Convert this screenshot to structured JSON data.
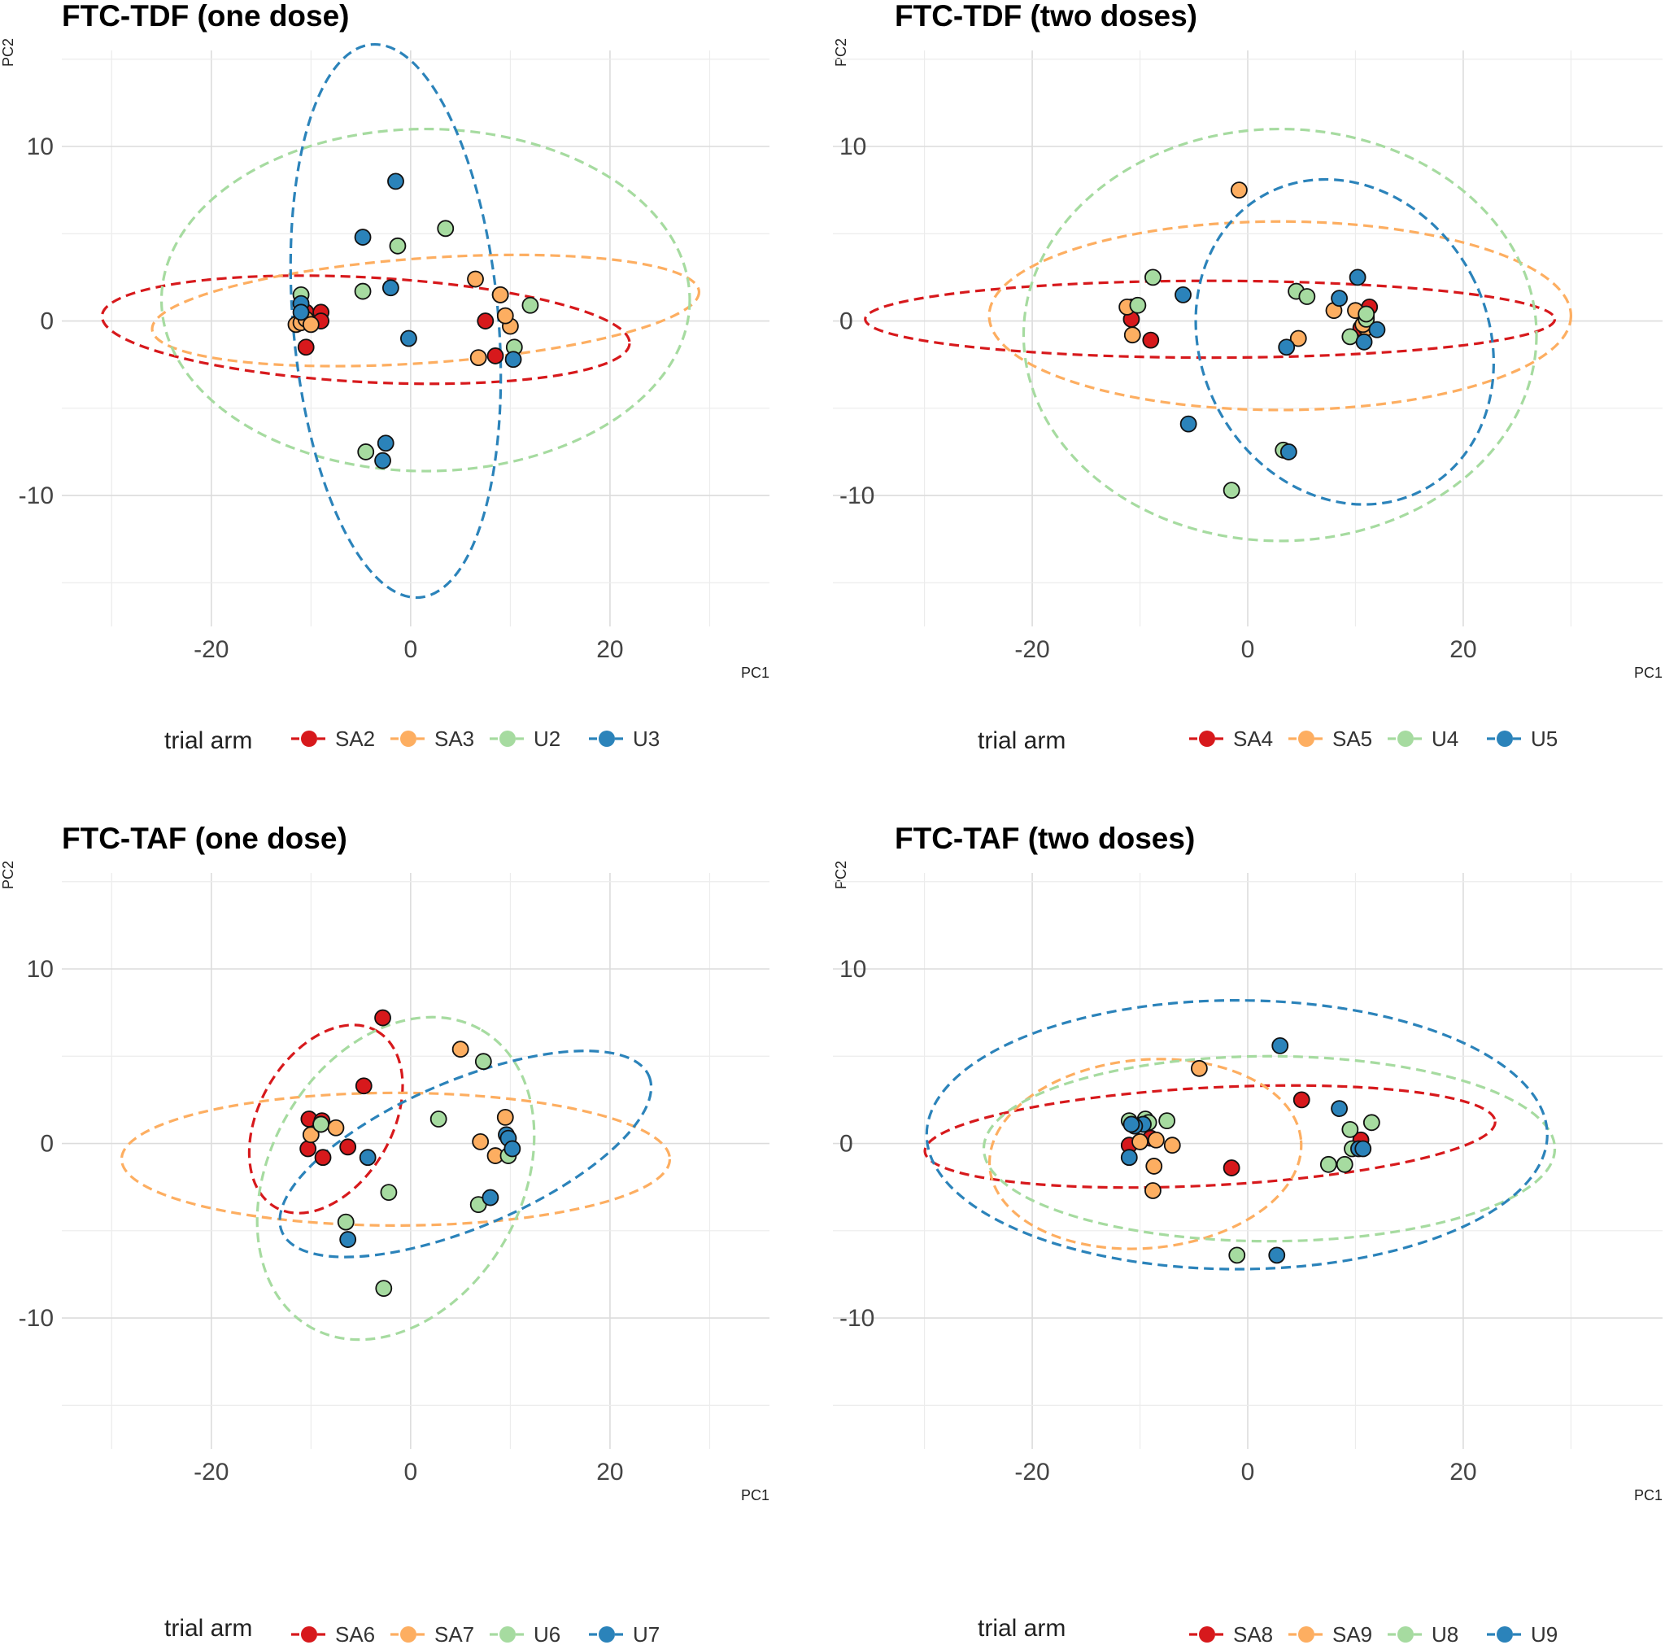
{
  "legend_title": "trial arm",
  "colors": [
    "#d7191c",
    "#fdae61",
    "#a6dba0",
    "#2b83ba"
  ],
  "chart_data": [
    {
      "type": "scatter",
      "title": "FTC-TDF (one dose)",
      "xlabel": "PC1",
      "ylabel": "PC2",
      "xlim": [
        -35,
        36
      ],
      "ylim": [
        -17.5,
        15.5
      ],
      "xticks": [
        -20,
        0,
        20
      ],
      "yticks": [
        -10,
        0,
        10
      ],
      "xtick_labels": [
        "-20",
        "0",
        "20"
      ],
      "ytick_labels": [
        "-10",
        "0",
        "10"
      ],
      "series": [
        {
          "name": "SA2",
          "color": "#d7191c",
          "points": [
            [
              -10.5,
              0.5
            ],
            [
              -9,
              0.5
            ],
            [
              -9,
              0.0
            ],
            [
              -10.5,
              -1.5
            ],
            [
              7.5,
              0.0
            ],
            [
              8.5,
              -2.0
            ],
            [
              9,
              1.5
            ]
          ],
          "ellipse": {
            "cx": -4.5,
            "cy": -0.5,
            "rx": 26.5,
            "ry": 3.0,
            "angle": -3
          }
        },
        {
          "name": "SA3",
          "color": "#fdae61",
          "points": [
            [
              -11.5,
              -0.2
            ],
            [
              -11,
              -0.1
            ],
            [
              -10.5,
              0.1
            ],
            [
              -10,
              -0.2
            ],
            [
              6.5,
              2.4
            ],
            [
              9,
              1.5
            ],
            [
              10,
              -0.3
            ],
            [
              9.5,
              0.3
            ],
            [
              6.8,
              -2.1
            ]
          ],
          "ellipse": {
            "cx": 1.5,
            "cy": 0.6,
            "rx": 27.5,
            "ry": 3.0,
            "angle": 4
          }
        },
        {
          "name": "U2",
          "color": "#a6dba0",
          "points": [
            [
              -11,
              1.5
            ],
            [
              -4.8,
              1.7
            ],
            [
              -1.3,
              4.3
            ],
            [
              3.5,
              5.3
            ],
            [
              12,
              0.9
            ],
            [
              10.4,
              -1.5
            ],
            [
              -4.5,
              -7.5
            ]
          ],
          "ellipse": {
            "cx": 1.5,
            "cy": 1.2,
            "rx": 26.5,
            "ry": 9.8,
            "angle": 0
          }
        },
        {
          "name": "U3",
          "color": "#2b83ba",
          "points": [
            [
              -1.5,
              8.0
            ],
            [
              -4.8,
              4.8
            ],
            [
              -2,
              1.9
            ],
            [
              -11,
              1.0
            ],
            [
              -11,
              0.5
            ],
            [
              -0.2,
              -1.0
            ],
            [
              10.3,
              -2.2
            ],
            [
              -2.5,
              -7.0
            ],
            [
              -2.8,
              -8.0
            ]
          ],
          "ellipse": {
            "cx": -1.5,
            "cy": 0.0,
            "rx": 10.3,
            "ry": 15.9,
            "angle": 5
          }
        }
      ]
    },
    {
      "type": "scatter",
      "title": "FTC-TDF (two doses)",
      "xlabel": "PC1",
      "ylabel": "PC2",
      "xlim": [
        -38.5,
        38.5
      ],
      "ylim": [
        -17.5,
        15.5
      ],
      "xticks": [
        -20,
        0,
        20
      ],
      "yticks": [
        -10,
        0,
        10
      ],
      "xtick_labels": [
        "-20",
        "0",
        "20"
      ],
      "ytick_labels": [
        "-10",
        "0",
        "10"
      ],
      "series": [
        {
          "name": "SA4",
          "color": "#d7191c",
          "points": [
            [
              -10.8,
              0.8
            ],
            [
              -10.8,
              0.1
            ],
            [
              -9,
              -1.1
            ],
            [
              11.3,
              0.8
            ],
            [
              10.5,
              -0.4
            ]
          ],
          "ellipse": {
            "cx": -3.5,
            "cy": 0.1,
            "rx": 32,
            "ry": 2.2,
            "angle": 0
          }
        },
        {
          "name": "SA5",
          "color": "#fdae61",
          "points": [
            [
              -11.2,
              0.8
            ],
            [
              -10.7,
              -0.8
            ],
            [
              -0.8,
              7.5
            ],
            [
              4.7,
              -1.0
            ],
            [
              8,
              0.6
            ],
            [
              10,
              0.6
            ],
            [
              11,
              -0.4
            ],
            [
              10.7,
              -0.2
            ],
            [
              11,
              0.2
            ]
          ],
          "ellipse": {
            "cx": 3,
            "cy": 0.3,
            "rx": 27,
            "ry": 5.4,
            "angle": 0
          }
        },
        {
          "name": "U4",
          "color": "#a6dba0",
          "points": [
            [
              -10.2,
              0.9
            ],
            [
              -8.8,
              2.5
            ],
            [
              4.5,
              1.7
            ],
            [
              5.5,
              1.4
            ],
            [
              9.5,
              -0.9
            ],
            [
              11,
              0.1
            ],
            [
              11,
              0.4
            ],
            [
              3.3,
              -7.4
            ],
            [
              -1.5,
              -9.7
            ]
          ],
          "ellipse": {
            "cx": 3,
            "cy": -0.8,
            "rx": 23.8,
            "ry": 11.8,
            "angle": 0
          }
        },
        {
          "name": "U5",
          "color": "#2b83ba",
          "points": [
            [
              -6,
              1.5
            ],
            [
              10.2,
              2.5
            ],
            [
              8.5,
              1.3
            ],
            [
              12,
              -0.5
            ],
            [
              10.8,
              -1.2
            ],
            [
              3.6,
              -1.5
            ],
            [
              -5.5,
              -5.9
            ],
            [
              3.8,
              -7.5
            ]
          ],
          "ellipse": {
            "cx": 9,
            "cy": -1.2,
            "rx": 13.3,
            "ry": 9.6,
            "angle": 28
          }
        }
      ]
    },
    {
      "type": "scatter",
      "title": "FTC-TAF (one dose)",
      "xlabel": "PC1",
      "ylabel": "PC2",
      "xlim": [
        -35,
        36
      ],
      "ylim": [
        -17.5,
        15.5
      ],
      "xticks": [
        -20,
        0,
        20
      ],
      "yticks": [
        -10,
        0,
        10
      ],
      "xtick_labels": [
        "-20",
        "0",
        "20"
      ],
      "ytick_labels": [
        "-10",
        "0",
        "10"
      ],
      "series": [
        {
          "name": "SA6",
          "color": "#d7191c",
          "points": [
            [
              -2.8,
              7.2
            ],
            [
              -4.7,
              3.3
            ],
            [
              -10.2,
              1.4
            ],
            [
              -8.9,
              1.3
            ],
            [
              -10.3,
              -0.3
            ],
            [
              -8.8,
              -0.8
            ],
            [
              -6.3,
              -0.2
            ]
          ],
          "ellipse": {
            "cx": -8.5,
            "cy": 1.4,
            "rx": 10.2,
            "ry": 3.8,
            "angle": 60
          }
        },
        {
          "name": "SA7",
          "color": "#fdae61",
          "points": [
            [
              5,
              5.4
            ],
            [
              9.5,
              1.5
            ],
            [
              -10,
              0.5
            ],
            [
              -9,
              1.1
            ],
            [
              -7.5,
              0.9
            ],
            [
              7,
              0.1
            ],
            [
              8.5,
              -0.7
            ]
          ],
          "ellipse": {
            "cx": -1.5,
            "cy": -0.9,
            "rx": 27.5,
            "ry": 3.8,
            "angle": 0
          }
        },
        {
          "name": "U6",
          "color": "#a6dba0",
          "points": [
            [
              7.3,
              4.7
            ],
            [
              2.8,
              1.4
            ],
            [
              -9,
              1.1
            ],
            [
              -2.2,
              -2.8
            ],
            [
              6.8,
              -3.5
            ],
            [
              9.8,
              -0.7
            ],
            [
              -6.5,
              -4.5
            ],
            [
              -2.7,
              -8.3
            ]
          ],
          "ellipse": {
            "cx": -1.5,
            "cy": -2,
            "rx": 17.2,
            "ry": 7.2,
            "angle": 60
          }
        },
        {
          "name": "U7",
          "color": "#2b83ba",
          "points": [
            [
              9.6,
              0.5
            ],
            [
              9.8,
              0.3
            ],
            [
              10.2,
              -0.3
            ],
            [
              -4.3,
              -0.8
            ],
            [
              8,
              -3.1
            ],
            [
              -6.3,
              -5.5
            ]
          ],
          "ellipse": {
            "cx": 5.5,
            "cy": -0.6,
            "rx": 20,
            "ry": 4.2,
            "angle": 23
          }
        }
      ]
    },
    {
      "type": "scatter",
      "title": "FTC-TAF (two doses)",
      "xlabel": "PC1",
      "ylabel": "PC2",
      "xlim": [
        -38.5,
        38.5
      ],
      "ylim": [
        -17.5,
        15.5
      ],
      "xticks": [
        -20,
        0,
        20
      ],
      "yticks": [
        -10,
        0,
        10
      ],
      "xtick_labels": [
        "-20",
        "0",
        "20"
      ],
      "ytick_labels": [
        "-10",
        "0",
        "10"
      ],
      "series": [
        {
          "name": "SA8",
          "color": "#d7191c",
          "points": [
            [
              5,
              2.5
            ],
            [
              -10,
              0.1
            ],
            [
              -11,
              -0.1
            ],
            [
              -9,
              0.3
            ],
            [
              -1.5,
              -1.4
            ],
            [
              10.5,
              0.2
            ]
          ],
          "ellipse": {
            "cx": -3.5,
            "cy": 0.4,
            "rx": 26.5,
            "ry": 2.8,
            "angle": 3
          }
        },
        {
          "name": "SA9",
          "color": "#fdae61",
          "points": [
            [
              -4.5,
              4.3
            ],
            [
              -10,
              0.1
            ],
            [
              -8.5,
              0.2
            ],
            [
              -7,
              -0.1
            ],
            [
              -8.7,
              -1.3
            ],
            [
              -8.8,
              -2.7
            ]
          ],
          "ellipse": {
            "cx": -9.5,
            "cy": -0.6,
            "rx": 14.5,
            "ry": 5.4,
            "angle": 5
          }
        },
        {
          "name": "U8",
          "color": "#a6dba0",
          "points": [
            [
              -11,
              1.3
            ],
            [
              -9.5,
              1.4
            ],
            [
              -9.2,
              1.2
            ],
            [
              -7.5,
              1.3
            ],
            [
              11.5,
              1.2
            ],
            [
              9.5,
              0.8
            ],
            [
              7.5,
              -1.2
            ],
            [
              9,
              -1.2
            ],
            [
              9.7,
              -0.3
            ],
            [
              -1,
              -6.4
            ]
          ],
          "ellipse": {
            "cx": 2,
            "cy": -0.3,
            "rx": 26.5,
            "ry": 5.3,
            "angle": 0
          }
        },
        {
          "name": "U9",
          "color": "#2b83ba",
          "points": [
            [
              3,
              5.6
            ],
            [
              8.5,
              2.0
            ],
            [
              -9.7,
              1.1
            ],
            [
              -10.5,
              1.0
            ],
            [
              -10.8,
              1.1
            ],
            [
              10.3,
              -0.3
            ],
            [
              10.7,
              -0.3
            ],
            [
              -11,
              -0.8
            ],
            [
              2.7,
              -6.4
            ]
          ],
          "ellipse": {
            "cx": -1,
            "cy": 0.5,
            "rx": 28.8,
            "ry": 7.7,
            "angle": 0
          }
        }
      ]
    }
  ]
}
